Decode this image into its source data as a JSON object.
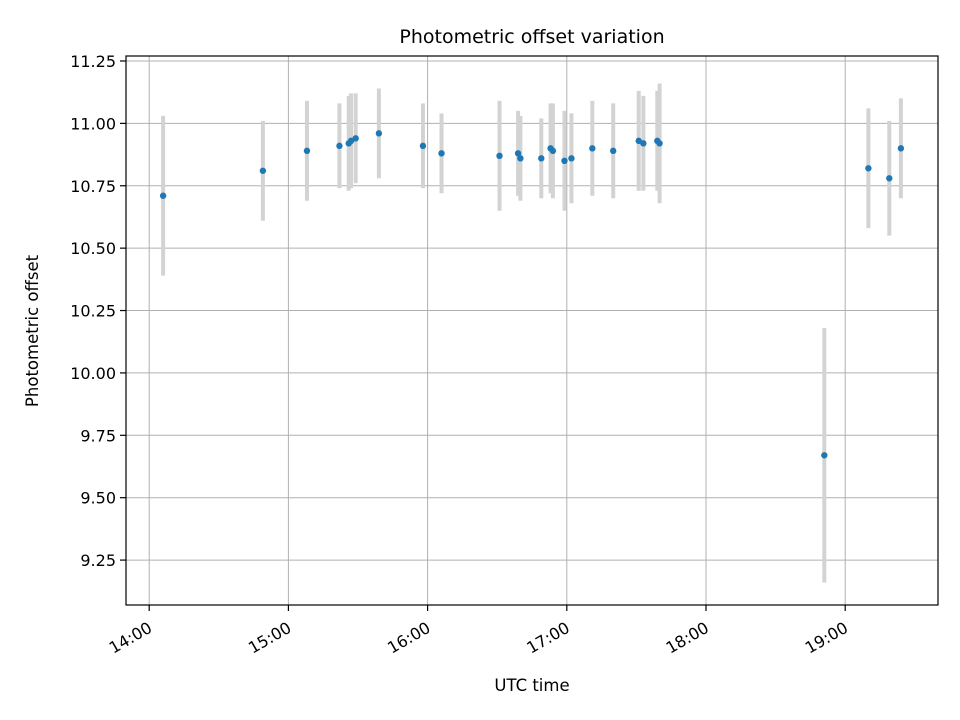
{
  "chart_data": {
    "type": "scatter",
    "title": "Photometric offset variation",
    "xlabel": "UTC time",
    "ylabel": "Photometric offset",
    "x_tick_labels": [
      "14:00",
      "15:00",
      "16:00",
      "17:00",
      "18:00",
      "19:00"
    ],
    "y_tick_labels": [
      "9.25",
      "9.50",
      "9.75",
      "10.00",
      "10.25",
      "10.50",
      "10.75",
      "11.00",
      "11.25"
    ],
    "xlim": [
      "13:50",
      "19:40"
    ],
    "ylim": [
      9.07,
      11.27
    ],
    "grid": true,
    "marker_color": "#1f77b4",
    "errorbar_color": "#d3d3d3",
    "points": [
      {
        "x": "14:06",
        "y": 10.71,
        "err": 0.32
      },
      {
        "x": "14:49",
        "y": 10.81,
        "err": 0.2
      },
      {
        "x": "15:08",
        "y": 10.89,
        "err": 0.2
      },
      {
        "x": "15:22",
        "y": 10.91,
        "err": 0.17
      },
      {
        "x": "15:26",
        "y": 10.92,
        "err": 0.19
      },
      {
        "x": "15:27",
        "y": 10.93,
        "err": 0.19
      },
      {
        "x": "15:29",
        "y": 10.94,
        "err": 0.18
      },
      {
        "x": "15:39",
        "y": 10.96,
        "err": 0.18
      },
      {
        "x": "15:58",
        "y": 10.91,
        "err": 0.17
      },
      {
        "x": "16:06",
        "y": 10.88,
        "err": 0.16
      },
      {
        "x": "16:31",
        "y": 10.87,
        "err": 0.22
      },
      {
        "x": "16:39",
        "y": 10.88,
        "err": 0.17
      },
      {
        "x": "16:40",
        "y": 10.86,
        "err": 0.17
      },
      {
        "x": "16:49",
        "y": 10.86,
        "err": 0.16
      },
      {
        "x": "16:53",
        "y": 10.9,
        "err": 0.18
      },
      {
        "x": "16:54",
        "y": 10.89,
        "err": 0.19
      },
      {
        "x": "16:59",
        "y": 10.85,
        "err": 0.2
      },
      {
        "x": "17:02",
        "y": 10.86,
        "err": 0.18
      },
      {
        "x": "17:11",
        "y": 10.9,
        "err": 0.19
      },
      {
        "x": "17:20",
        "y": 10.89,
        "err": 0.19
      },
      {
        "x": "17:31",
        "y": 10.93,
        "err": 0.2
      },
      {
        "x": "17:33",
        "y": 10.92,
        "err": 0.19
      },
      {
        "x": "17:39",
        "y": 10.93,
        "err": 0.2
      },
      {
        "x": "17:40",
        "y": 10.92,
        "err": 0.24
      },
      {
        "x": "18:51",
        "y": 9.67,
        "err": 0.51
      },
      {
        "x": "19:10",
        "y": 10.82,
        "err": 0.24
      },
      {
        "x": "19:19",
        "y": 10.78,
        "err": 0.23
      },
      {
        "x": "19:24",
        "y": 10.9,
        "err": 0.2
      }
    ]
  }
}
